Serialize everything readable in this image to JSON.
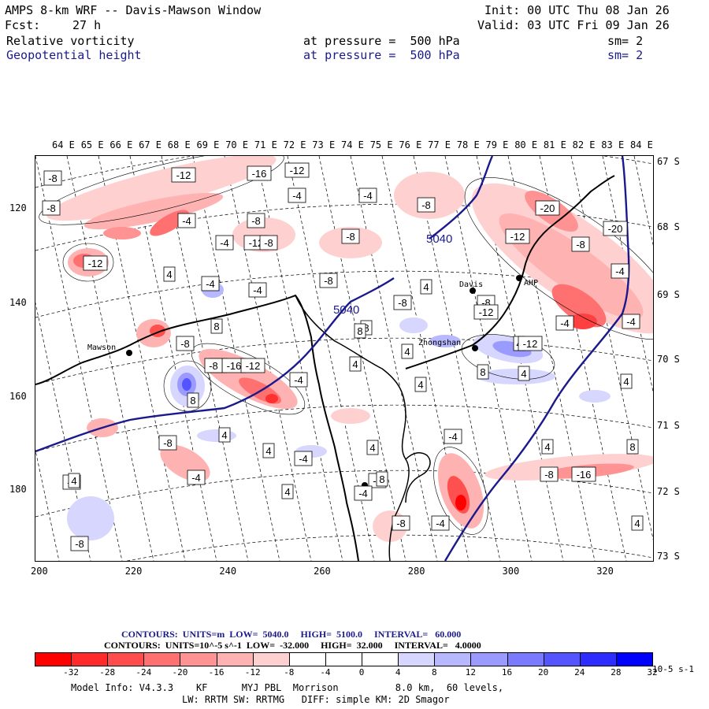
{
  "header": {
    "title": "AMPS 8-km WRF -- Davis-Mawson Window",
    "fcst_label": "Fcst:",
    "fcst_value": "27 h",
    "init": "Init: 00 UTC Thu 08 Jan 26",
    "valid": "Valid: 03 UTC Fri 09 Jan 26",
    "field1": "Relative vorticity",
    "field1_level": "at pressure =  500 hPa",
    "field1_sm": "sm= 2",
    "field2": "Geopotential height",
    "field2_level": "at pressure =  500 hPa",
    "field2_sm": "sm= 2"
  },
  "axes": {
    "lon_labels": [
      "64 E",
      "65 E",
      "66 E",
      "67 E",
      "68 E",
      "69 E",
      "70 E",
      "71 E",
      "72 E",
      "73 E",
      "74 E",
      "75 E",
      "76 E",
      "77 E",
      "78 E",
      "79 E",
      "80 E",
      "81 E",
      "82 E",
      "83 E",
      "84 E"
    ],
    "lat_labels": [
      "67 S",
      "68 S",
      "69 S",
      "70 S",
      "71 S",
      "72 S",
      "73 S"
    ],
    "y_labels": [
      "120",
      "140",
      "160",
      "180"
    ],
    "x_labels": [
      "200",
      "220",
      "240",
      "260",
      "280",
      "300",
      "320"
    ]
  },
  "stations": {
    "davis": "Davis",
    "mawson": "Mawson",
    "zhongshan": "Zhongshan",
    "ahp": "AHP"
  },
  "height_contour_labels": [
    "5040",
    "5040"
  ],
  "vorticity_labels": [
    "-8",
    "-12",
    "-16",
    "-12",
    "-4",
    "-4",
    "-8",
    "-8",
    "-12",
    "-20",
    "-4",
    "-8",
    "-12",
    "-12",
    "-8",
    "-8",
    "-8",
    "-20",
    "-4",
    "4",
    "-4",
    "-4",
    "-8",
    "-8",
    "4",
    "-8",
    "-12",
    "-4",
    "8",
    "4",
    "-4",
    "4",
    "-8",
    "8",
    "12",
    "-16",
    "-12",
    "-4",
    "8",
    "-8",
    "-12",
    "4",
    "8",
    "4",
    "-4",
    "4",
    "4",
    "-4",
    "-8",
    "-8",
    "4",
    "-4",
    "8",
    "4",
    "8",
    "-4",
    "-4",
    "-8",
    "-16",
    "4",
    "-4",
    "-4",
    "8",
    "4",
    "4",
    "-8",
    "4",
    "-4",
    "8",
    "4"
  ],
  "legend": {
    "contours1": "CONTOURS:  UNITS=m  LOW=  5040.0     HIGH=  5100.0     INTERVAL=   60.000",
    "contours2": "CONTOURS:  UNITS=10^-5 s^-1  LOW=  -32.000     HIGH=  32.000     INTERVAL=   4.0000",
    "colorbar_ticks": [
      "-32",
      "-28",
      "-24",
      "-20",
      "-16",
      "-12",
      "-8",
      "-4",
      "0",
      "4",
      "8",
      "12",
      "16",
      "20",
      "24",
      "28",
      "32"
    ],
    "colorbar_units": "10-5 s-1",
    "colorbar_colors": [
      "#ff0000",
      "#ff2a2a",
      "#ff4d4d",
      "#ff7070",
      "#ff9393",
      "#ffb2b2",
      "#ffd0d0",
      "#ffffff",
      "#ffffff",
      "#ffffff",
      "#d6d6ff",
      "#b8b8ff",
      "#9a9aff",
      "#7a7aff",
      "#5555ff",
      "#2d2dff",
      "#0000ff"
    ]
  },
  "footer": {
    "line1": "Model Info: V4.3.3    KF      MYJ PBL  Morrison          8.0 km,  60 levels,",
    "line2": "LW: RRTM SW: RRTMG   DIFF: simple KM: 2D Smagor"
  }
}
